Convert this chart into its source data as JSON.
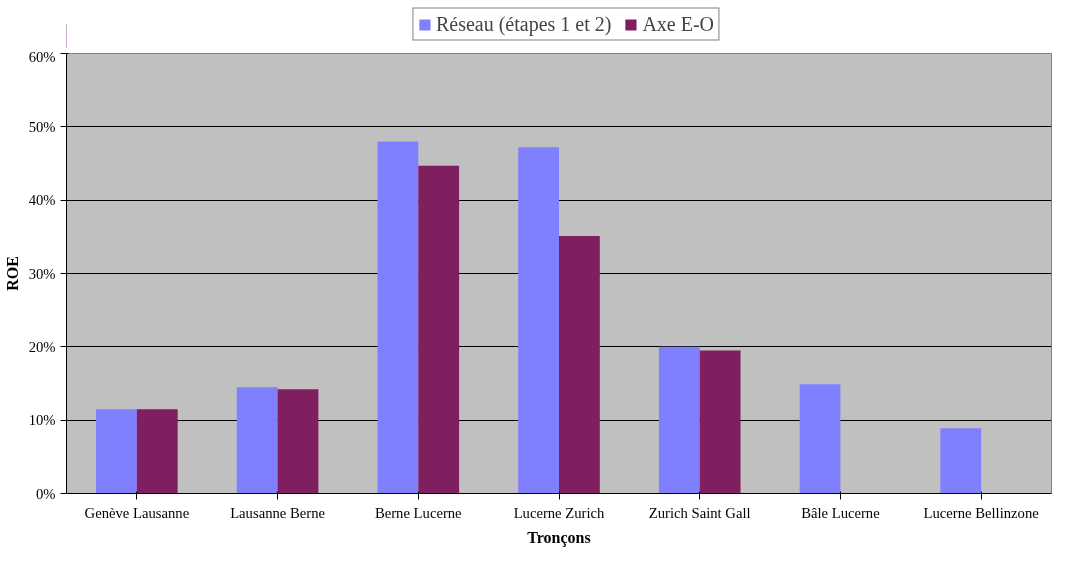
{
  "chart_data": {
    "type": "bar",
    "xlabel": "Tronçons",
    "ylabel": "ROE",
    "categories": [
      "Genève Lausanne",
      "Lausanne Berne",
      "Berne Lucerne",
      "Lucerne Zurich",
      "Zurich Saint Gall",
      "Bâle Lucerne",
      "Lucerne Bellinzone"
    ],
    "series": [
      {
        "name": "Réseau (étapes 1 et 2)",
        "color": "#8080ff",
        "values": [
          11.5,
          14.5,
          48.0,
          47.2,
          20.0,
          14.9,
          8.9
        ]
      },
      {
        "name": "Axe E-O",
        "color": "#7f1f5f",
        "values": [
          11.5,
          14.2,
          44.7,
          35.1,
          19.5,
          null,
          null
        ]
      }
    ],
    "ylim": [
      0,
      60
    ],
    "yticks": [
      {
        "value": 0,
        "label": "0%"
      },
      {
        "value": 10,
        "label": "10%"
      },
      {
        "value": 20,
        "label": "20%"
      },
      {
        "value": 30,
        "label": "30%"
      },
      {
        "value": 40,
        "label": "40%"
      },
      {
        "value": 50,
        "label": "50%"
      },
      {
        "value": 60,
        "label": "60%"
      }
    ],
    "grid": "y",
    "legend": "top"
  }
}
